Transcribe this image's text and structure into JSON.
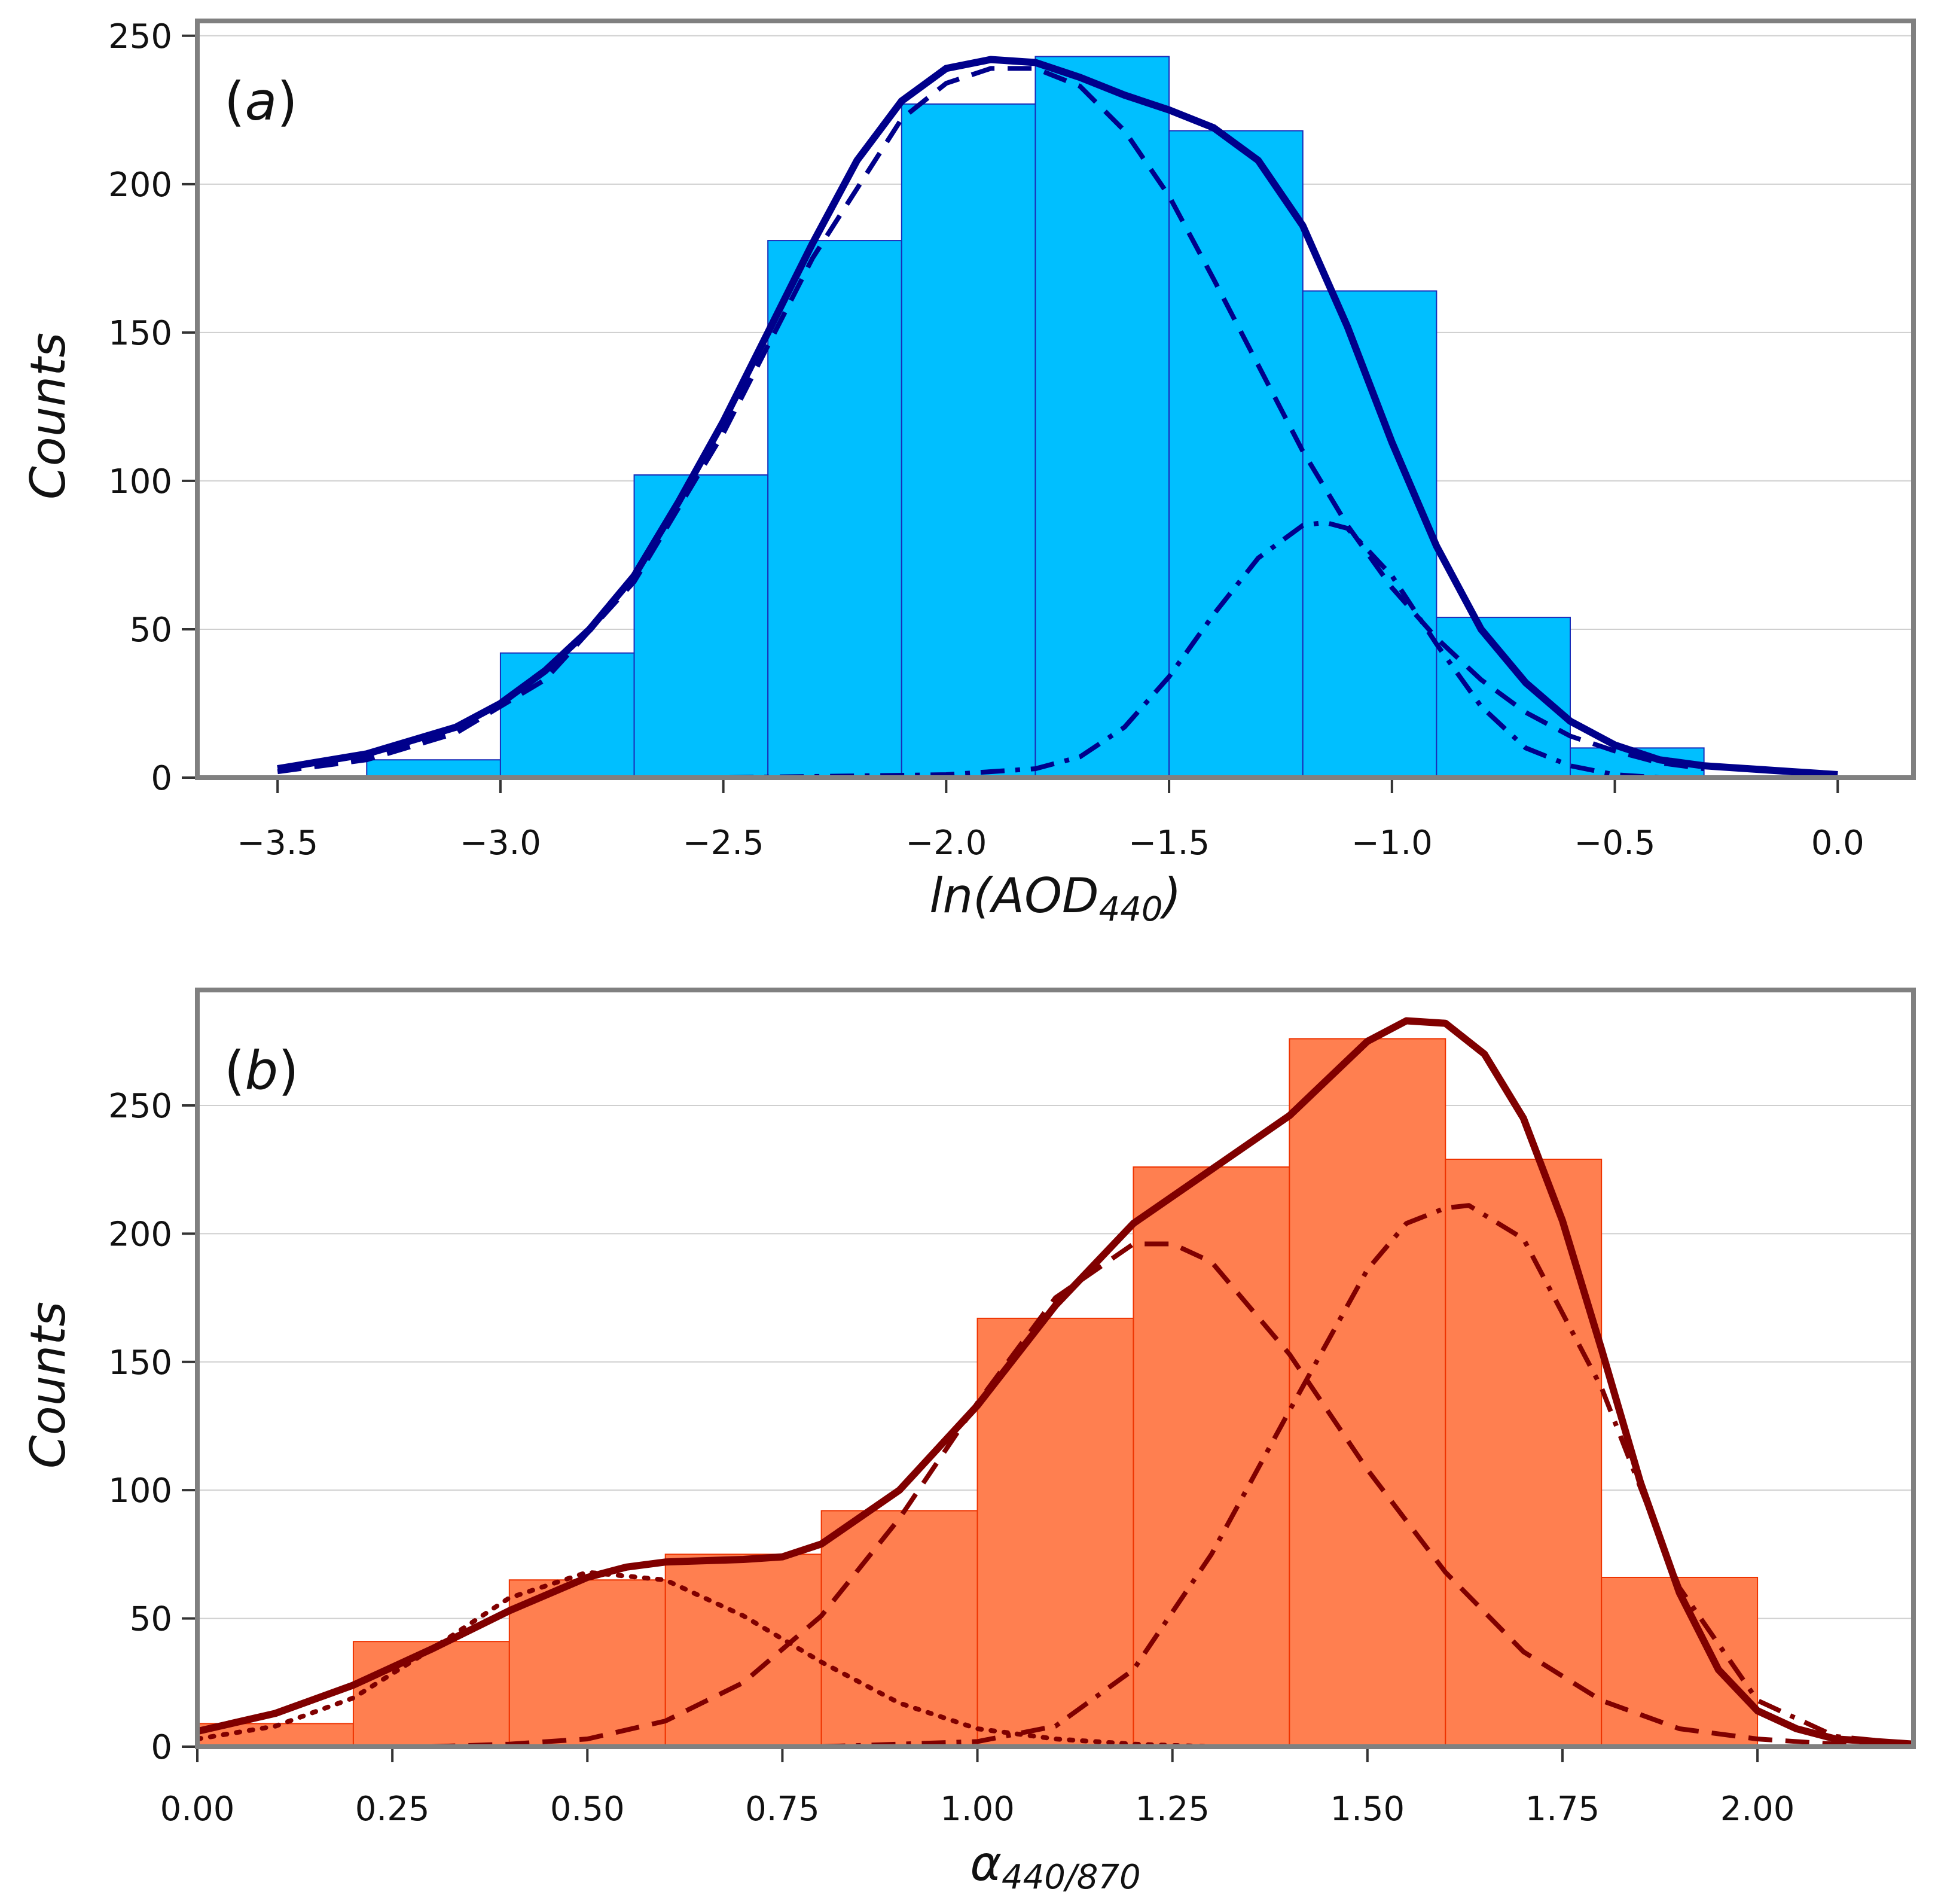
{
  "chart_data": [
    {
      "type": "bar",
      "panel_label": "(a)",
      "panel_label_letter": "a",
      "xlabel": "ln(AOD",
      "xlabel_sub": "440",
      "xlabel_close": ")",
      "ylabel": "Counts",
      "xlim": [
        -3.68,
        0.17
      ],
      "ylim": [
        0,
        255
      ],
      "xticks": [
        -3.5,
        -3.0,
        -2.5,
        -2.0,
        -1.5,
        -1.0,
        -0.5,
        0.0
      ],
      "xtick_labels": [
        "−3.5",
        "−3.0",
        "−2.5",
        "−2.0",
        "−1.5",
        "−1.0",
        "−0.5",
        "0.0"
      ],
      "yticks": [
        0,
        50,
        100,
        150,
        200,
        250
      ],
      "ytick_labels": [
        "0",
        "50",
        "100",
        "150",
        "200",
        "250"
      ],
      "grid": true,
      "colors": {
        "bar_fill": "#00bfff",
        "bar_edge": "#1a2cb8",
        "line": "#00008b"
      },
      "bins": [
        {
          "x0": -3.3,
          "x1": -3.0,
          "count": 6
        },
        {
          "x0": -3.0,
          "x1": -2.7,
          "count": 42
        },
        {
          "x0": -2.7,
          "x1": -2.4,
          "count": 102
        },
        {
          "x0": -2.4,
          "x1": -2.1,
          "count": 181
        },
        {
          "x0": -2.1,
          "x1": -1.8,
          "count": 227
        },
        {
          "x0": -1.8,
          "x1": -1.5,
          "count": 243
        },
        {
          "x0": -1.5,
          "x1": -1.2,
          "count": 218
        },
        {
          "x0": -1.2,
          "x1": -0.9,
          "count": 164
        },
        {
          "x0": -0.9,
          "x1": -0.6,
          "count": 54
        },
        {
          "x0": -0.6,
          "x1": -0.3,
          "count": 10
        }
      ],
      "curves": [
        {
          "style": "solid",
          "x": [
            -3.5,
            -3.3,
            -3.1,
            -3.0,
            -2.9,
            -2.8,
            -2.7,
            -2.6,
            -2.5,
            -2.4,
            -2.3,
            -2.2,
            -2.1,
            -2.0,
            -1.9,
            -1.8,
            -1.7,
            -1.6,
            -1.5,
            -1.4,
            -1.3,
            -1.2,
            -1.1,
            -1.0,
            -0.9,
            -0.8,
            -0.7,
            -0.6,
            -0.5,
            -0.4,
            -0.3,
            -0.2,
            -0.1,
            0.0
          ],
          "y": [
            3,
            8,
            17,
            25,
            36,
            50,
            68,
            93,
            120,
            150,
            180,
            208,
            228,
            239,
            242,
            241,
            236,
            230,
            225,
            219,
            208,
            186,
            152,
            113,
            78,
            50,
            32,
            19,
            11,
            6,
            4,
            3,
            2,
            1
          ]
        },
        {
          "style": "dashed",
          "x": [
            -3.5,
            -3.3,
            -3.1,
            -2.9,
            -2.7,
            -2.5,
            -2.3,
            -2.1,
            -2.0,
            -1.9,
            -1.8,
            -1.7,
            -1.6,
            -1.5,
            -1.4,
            -1.3,
            -1.2,
            -1.1,
            -1.0,
            -0.9,
            -0.8,
            -0.7,
            -0.6,
            -0.5,
            -0.4,
            -0.3
          ],
          "y": [
            2,
            6,
            15,
            33,
            66,
            116,
            175,
            222,
            234,
            239,
            239,
            233,
            218,
            196,
            168,
            139,
            110,
            85,
            64,
            47,
            33,
            22,
            14,
            9,
            5,
            3
          ]
        },
        {
          "style": "dashdot",
          "x": [
            -3.5,
            -2.5,
            -2.0,
            -1.8,
            -1.7,
            -1.6,
            -1.5,
            -1.4,
            -1.3,
            -1.2,
            -1.15,
            -1.1,
            -1.0,
            -0.9,
            -0.8,
            -0.7,
            -0.6,
            -0.5,
            -0.4,
            -0.3
          ],
          "y": [
            0,
            0,
            1,
            3,
            7,
            17,
            34,
            55,
            74,
            85,
            86,
            84,
            68,
            45,
            24,
            10,
            4,
            1,
            0,
            0
          ]
        }
      ]
    },
    {
      "type": "bar",
      "panel_label": "(b)",
      "panel_label_letter": "b",
      "xlabel": "α",
      "xlabel_sub": "440/870",
      "xlabel_close": "",
      "ylabel": "Counts",
      "xlim": [
        0.0,
        2.2
      ],
      "ylim": [
        0,
        295
      ],
      "xticks": [
        0.0,
        0.25,
        0.5,
        0.75,
        1.0,
        1.25,
        1.5,
        1.75,
        2.0
      ],
      "xtick_labels": [
        "0.00",
        "0.25",
        "0.50",
        "0.75",
        "1.00",
        "1.25",
        "1.50",
        "1.75",
        "2.00"
      ],
      "yticks": [
        0,
        50,
        100,
        150,
        200,
        250
      ],
      "ytick_labels": [
        "0",
        "50",
        "100",
        "150",
        "200",
        "250"
      ],
      "grid": true,
      "colors": {
        "bar_fill": "#ff7f50",
        "bar_edge": "#ee3300",
        "line": "#800000"
      },
      "bins": [
        {
          "x0": 0.0,
          "x1": 0.2,
          "count": 9
        },
        {
          "x0": 0.2,
          "x1": 0.4,
          "count": 41
        },
        {
          "x0": 0.4,
          "x1": 0.6,
          "count": 65
        },
        {
          "x0": 0.6,
          "x1": 0.8,
          "count": 75
        },
        {
          "x0": 0.8,
          "x1": 1.0,
          "count": 92
        },
        {
          "x0": 1.0,
          "x1": 1.2,
          "count": 167
        },
        {
          "x0": 1.2,
          "x1": 1.4,
          "count": 226
        },
        {
          "x0": 1.4,
          "x1": 1.6,
          "count": 276
        },
        {
          "x0": 1.6,
          "x1": 1.8,
          "count": 229
        },
        {
          "x0": 1.8,
          "x1": 2.0,
          "count": 66
        }
      ],
      "curves": [
        {
          "style": "solid",
          "x": [
            0.0,
            0.1,
            0.2,
            0.3,
            0.4,
            0.5,
            0.55,
            0.6,
            0.7,
            0.75,
            0.8,
            0.9,
            1.0,
            1.1,
            1.2,
            1.3,
            1.4,
            1.5,
            1.55,
            1.6,
            1.65,
            1.7,
            1.75,
            1.8,
            1.85,
            1.9,
            1.95,
            2.0,
            2.05,
            2.1,
            2.15,
            2.2
          ],
          "y": [
            6,
            13,
            24,
            38,
            53,
            66,
            70,
            72,
            73,
            74,
            79,
            100,
            133,
            172,
            204,
            225,
            246,
            275,
            283,
            282,
            270,
            245,
            205,
            155,
            103,
            60,
            30,
            14,
            7,
            3,
            2,
            1
          ]
        },
        {
          "style": "dotted",
          "x": [
            0.0,
            0.1,
            0.2,
            0.3,
            0.4,
            0.5,
            0.6,
            0.7,
            0.8,
            0.9,
            1.0,
            1.1,
            1.2,
            1.3
          ],
          "y": [
            3,
            8,
            19,
            38,
            58,
            68,
            65,
            51,
            33,
            17,
            7,
            3,
            1,
            0
          ]
        },
        {
          "style": "dashed",
          "x": [
            0.3,
            0.4,
            0.5,
            0.6,
            0.7,
            0.8,
            0.9,
            1.0,
            1.1,
            1.2,
            1.25,
            1.3,
            1.4,
            1.5,
            1.6,
            1.7,
            1.8,
            1.9,
            2.0,
            2.1,
            2.2
          ],
          "y": [
            0,
            1,
            3,
            10,
            25,
            51,
            89,
            134,
            175,
            196,
            196,
            189,
            153,
            108,
            68,
            37,
            18,
            7,
            3,
            1,
            0
          ]
        },
        {
          "style": "dashdot",
          "x": [
            0.8,
            1.0,
            1.1,
            1.2,
            1.3,
            1.4,
            1.5,
            1.55,
            1.6,
            1.63,
            1.7,
            1.8,
            1.9,
            2.0,
            2.1,
            2.2
          ],
          "y": [
            0,
            2,
            8,
            30,
            75,
            131,
            186,
            204,
            210,
            211,
            198,
            140,
            62,
            18,
            4,
            1
          ]
        }
      ]
    }
  ]
}
